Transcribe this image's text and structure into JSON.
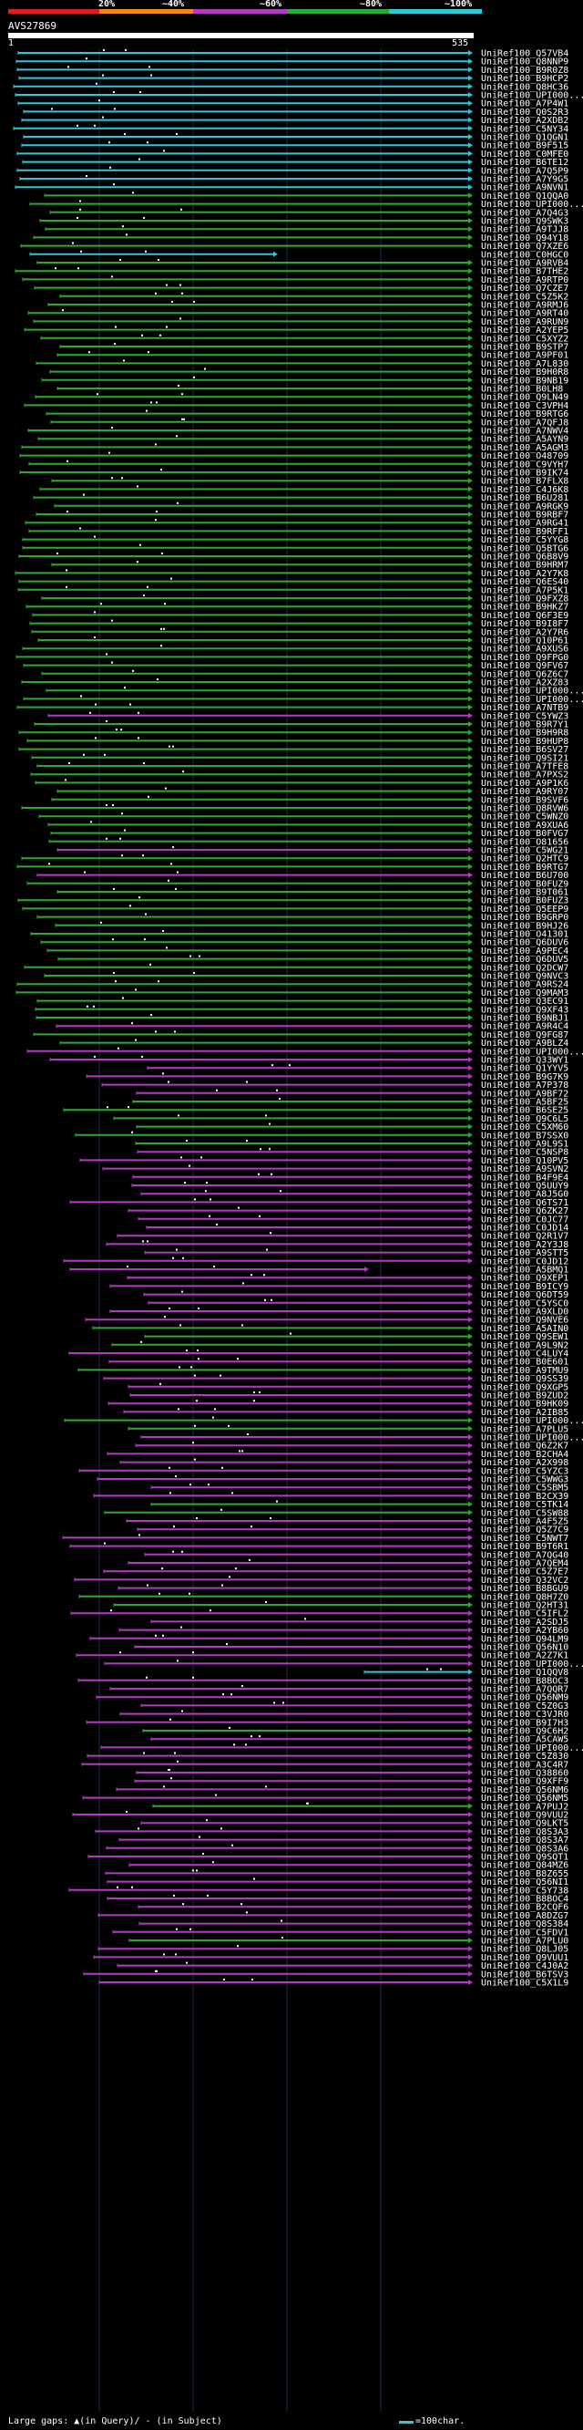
{
  "legend": {
    "labels": [
      "20%",
      "~40%",
      "~60%",
      "~80%",
      "~100%"
    ],
    "colors": [
      "#e01c1c",
      "#f08a14",
      "#b23ac2",
      "#2ea82e",
      "#33c6d8"
    ]
  },
  "query": {
    "id": "AVS27869",
    "start_tick": "1",
    "end_tick": "535"
  },
  "hits": [
    {
      "id": "UniRef100_Q57VB4",
      "color": "cyan"
    },
    {
      "id": "UniRef100_Q8NNP9",
      "color": "cyan"
    },
    {
      "id": "UniRef100_B9R0Z8",
      "color": "cyan"
    },
    {
      "id": "UniRef100_B9HCP2",
      "color": "cyan"
    },
    {
      "id": "UniRef100_Q8HC36",
      "color": "cyan"
    },
    {
      "id": "UniRef100_UPI000...",
      "color": "cyan"
    },
    {
      "id": "UniRef100_A7P4W1",
      "color": "cyan"
    },
    {
      "id": "UniRef100_Q0S2R3",
      "color": "cyan"
    },
    {
      "id": "UniRef100_A2XDB2",
      "color": "cyan"
    },
    {
      "id": "UniRef100_C5NY34",
      "color": "cyan"
    },
    {
      "id": "UniRef100_Q1QGN1",
      "color": "cyan"
    },
    {
      "id": "UniRef100_B9F515",
      "color": "cyan"
    },
    {
      "id": "UniRef100_C0MFE0",
      "color": "cyan"
    },
    {
      "id": "UniRef100_B6TE12",
      "color": "cyan"
    },
    {
      "id": "UniRef100_A7Q5P9",
      "color": "cyan"
    },
    {
      "id": "UniRef100_A7Y9G5",
      "color": "cyan"
    },
    {
      "id": "UniRef100_A9NVN1",
      "color": "cyan"
    },
    {
      "id": "UniRef100_Q1QQA0",
      "color": "green"
    },
    {
      "id": "UniRef100_UPI000...",
      "color": "green"
    },
    {
      "id": "UniRef100_A7Q4G3",
      "color": "green"
    },
    {
      "id": "UniRef100_Q9SWK3",
      "color": "green"
    },
    {
      "id": "UniRef100_A9TJJ8",
      "color": "green"
    },
    {
      "id": "UniRef100_Q94Y18",
      "color": "green"
    },
    {
      "id": "UniRef100_Q7XZE6",
      "color": "green"
    },
    {
      "id": "UniRef100_C0HGC0",
      "color": "cyan"
    },
    {
      "id": "UniRef100_A9RVB4",
      "color": "green"
    },
    {
      "id": "UniRef100_B7THE2",
      "color": "green"
    },
    {
      "id": "UniRef100_A9RTP0",
      "color": "green"
    },
    {
      "id": "UniRef100_Q7CZE7",
      "color": "green"
    },
    {
      "id": "UniRef100_C5Z5K2",
      "color": "green"
    },
    {
      "id": "UniRef100_A9RMJ6",
      "color": "green"
    },
    {
      "id": "UniRef100_A9RT40",
      "color": "green"
    },
    {
      "id": "UniRef100_A9RUN9",
      "color": "green"
    },
    {
      "id": "UniRef100_A2YEP5",
      "color": "green"
    },
    {
      "id": "UniRef100_C5XYZ2",
      "color": "green"
    },
    {
      "id": "UniRef100_B9STP7",
      "color": "green"
    },
    {
      "id": "UniRef100_A9PF01",
      "color": "green"
    },
    {
      "id": "UniRef100_A7L830",
      "color": "green"
    },
    {
      "id": "UniRef100_B9H0R8",
      "color": "green"
    },
    {
      "id": "UniRef100_B9NB19",
      "color": "green"
    },
    {
      "id": "UniRef100_B0LH8",
      "color": "green"
    },
    {
      "id": "UniRef100_Q9LN49",
      "color": "green"
    },
    {
      "id": "UniRef100_C3VPH4",
      "color": "green"
    },
    {
      "id": "UniRef100_B9RTG6",
      "color": "green"
    },
    {
      "id": "UniRef100_A7QFJ8",
      "color": "green"
    },
    {
      "id": "UniRef100_A7NWV4",
      "color": "green"
    },
    {
      "id": "UniRef100_A5AYN9",
      "color": "green"
    },
    {
      "id": "UniRef100_A5AGM3",
      "color": "green"
    },
    {
      "id": "UniRef100_O48709",
      "color": "green"
    },
    {
      "id": "UniRef100_C9VYH7",
      "color": "green"
    },
    {
      "id": "UniRef100_B9IK74",
      "color": "green"
    },
    {
      "id": "UniRef100_B7FLX8",
      "color": "green"
    },
    {
      "id": "UniRef100_C4J6K8",
      "color": "green"
    },
    {
      "id": "UniRef100_B6U281",
      "color": "green"
    },
    {
      "id": "UniRef100_A9RGK9",
      "color": "green"
    },
    {
      "id": "UniRef100_B9RBF7",
      "color": "green"
    },
    {
      "id": "UniRef100_A9RG41",
      "color": "green"
    },
    {
      "id": "UniRef100_B9RFF1",
      "color": "green"
    },
    {
      "id": "UniRef100_C5YYG8",
      "color": "green"
    },
    {
      "id": "UniRef100_Q5BTG6",
      "color": "green"
    },
    {
      "id": "UniRef100_Q6B8V9",
      "color": "green"
    },
    {
      "id": "UniRef100_B9HRM7",
      "color": "green"
    },
    {
      "id": "UniRef100_A2Y7K8",
      "color": "green"
    },
    {
      "id": "UniRef100_Q6ES40",
      "color": "green"
    },
    {
      "id": "UniRef100_A7P5K1",
      "color": "green"
    },
    {
      "id": "UniRef100_Q9FXZ8",
      "color": "green"
    },
    {
      "id": "UniRef100_B9HKZ7",
      "color": "green"
    },
    {
      "id": "UniRef100_Q6F3E9",
      "color": "green"
    },
    {
      "id": "UniRef100_B9I8F7",
      "color": "green"
    },
    {
      "id": "UniRef100_A2Y7R6",
      "color": "green"
    },
    {
      "id": "UniRef100_Q10P61",
      "color": "green"
    },
    {
      "id": "UniRef100_A9XUS6",
      "color": "green"
    },
    {
      "id": "UniRef100_Q9FPG0",
      "color": "green"
    },
    {
      "id": "UniRef100_Q9FV67",
      "color": "green"
    },
    {
      "id": "UniRef100_Q6Z6C7",
      "color": "green"
    },
    {
      "id": "UniRef100_A2XZ83",
      "color": "green"
    },
    {
      "id": "UniRef100_UPI000...",
      "color": "green"
    },
    {
      "id": "UniRef100_UPI000...",
      "color": "green"
    },
    {
      "id": "UniRef100_A7NTB9",
      "color": "green"
    },
    {
      "id": "UniRef100_C5YWZ3",
      "color": "magenta"
    },
    {
      "id": "UniRef100_B9R7Y1",
      "color": "green"
    },
    {
      "id": "UniRef100_B9H9R8",
      "color": "green"
    },
    {
      "id": "UniRef100_B9HUP8",
      "color": "green"
    },
    {
      "id": "UniRef100_B6SV27",
      "color": "green"
    },
    {
      "id": "UniRef100_Q9SI21",
      "color": "green"
    },
    {
      "id": "UniRef100_A7TFE8",
      "color": "green"
    },
    {
      "id": "UniRef100_A7PXS2",
      "color": "green"
    },
    {
      "id": "UniRef100_A9P1K6",
      "color": "green"
    },
    {
      "id": "UniRef100_A9RY07",
      "color": "green"
    },
    {
      "id": "UniRef100_B9SVF6",
      "color": "green"
    },
    {
      "id": "UniRef100_Q8RVW6",
      "color": "green"
    },
    {
      "id": "UniRef100_C5WNZ0",
      "color": "green"
    },
    {
      "id": "UniRef100_A9XUA6",
      "color": "green"
    },
    {
      "id": "UniRef100_B0FVG7",
      "color": "green"
    },
    {
      "id": "UniRef100_O81656",
      "color": "green"
    },
    {
      "id": "UniRef100_C5WG21",
      "color": "magenta"
    },
    {
      "id": "UniRef100_Q2HTC9",
      "color": "green"
    },
    {
      "id": "UniRef100_B9RTG7",
      "color": "green"
    },
    {
      "id": "UniRef100_B6U700",
      "color": "magenta"
    },
    {
      "id": "UniRef100_B0FUZ9",
      "color": "green"
    },
    {
      "id": "UniRef100_B9T061",
      "color": "green"
    },
    {
      "id": "UniRef100_B0FUZ3",
      "color": "green"
    },
    {
      "id": "UniRef100_Q5EEP9",
      "color": "green"
    },
    {
      "id": "UniRef100_B9GRP0",
      "color": "green"
    },
    {
      "id": "UniRef100_B9HJ26",
      "color": "green"
    },
    {
      "id": "UniRef100_O41301",
      "color": "green"
    },
    {
      "id": "UniRef100_Q6DUV6",
      "color": "green"
    },
    {
      "id": "UniRef100_A9PEC4",
      "color": "green"
    },
    {
      "id": "UniRef100_Q6DUV5",
      "color": "green"
    },
    {
      "id": "UniRef100_Q2DCW7",
      "color": "green"
    },
    {
      "id": "UniRef100_Q9NVC3",
      "color": "green"
    },
    {
      "id": "UniRef100_A9RS24",
      "color": "green"
    },
    {
      "id": "UniRef100_Q9MAM3",
      "color": "green"
    },
    {
      "id": "UniRef100_Q3EC91",
      "color": "green"
    },
    {
      "id": "UniRef100_Q9XF43",
      "color": "green"
    },
    {
      "id": "UniRef100_B9NBJ1",
      "color": "green"
    },
    {
      "id": "UniRef100_A9R4C4",
      "color": "magenta"
    },
    {
      "id": "UniRef100_Q9FG87",
      "color": "green"
    },
    {
      "id": "UniRef100_A9BLZ4",
      "color": "green"
    },
    {
      "id": "UniRef100_UPI000...",
      "color": "magenta"
    },
    {
      "id": "UniRef100_Q33WY1",
      "color": "magenta"
    },
    {
      "id": "UniRef100_Q1YYV5",
      "color": "magenta"
    },
    {
      "id": "UniRef100_B9G7K9",
      "color": "magenta"
    },
    {
      "id": "UniRef100_A7P378",
      "color": "magenta"
    },
    {
      "id": "UniRef100_A9BF72",
      "color": "magenta"
    },
    {
      "id": "UniRef100_A5BF25",
      "color": "green"
    },
    {
      "id": "UniRef100_B6SE25",
      "color": "green"
    },
    {
      "id": "UniRef100_Q9C6L5",
      "color": "green"
    },
    {
      "id": "UniRef100_C5XM60",
      "color": "green"
    },
    {
      "id": "UniRef100_B7SSX0",
      "color": "green"
    },
    {
      "id": "UniRef100_A9L9S1",
      "color": "green"
    },
    {
      "id": "UniRef100_C5NSP8",
      "color": "magenta"
    },
    {
      "id": "UniRef100_Q10PV5",
      "color": "magenta"
    },
    {
      "id": "UniRef100_A9SVN2",
      "color": "magenta"
    },
    {
      "id": "UniRef100_B4F9E4",
      "color": "magenta"
    },
    {
      "id": "UniRef100_Q5UUY9",
      "color": "magenta"
    },
    {
      "id": "UniRef100_A8J5G0",
      "color": "magenta"
    },
    {
      "id": "UniRef100_Q6TS71",
      "color": "magenta"
    },
    {
      "id": "UniRef100_Q6ZK27",
      "color": "magenta"
    },
    {
      "id": "UniRef100_C0JC77",
      "color": "magenta"
    },
    {
      "id": "UniRef100_C0JD14",
      "color": "magenta"
    },
    {
      "id": "UniRef100_Q2R1V7",
      "color": "magenta"
    },
    {
      "id": "UniRef100_A2Y3J8",
      "color": "magenta"
    },
    {
      "id": "UniRef100_A9STT5",
      "color": "magenta"
    },
    {
      "id": "UniRef100_C0JD12",
      "color": "magenta"
    },
    {
      "id": "UniRef100_A5BMQ1",
      "color": "magenta"
    },
    {
      "id": "UniRef100_Q9XEP1",
      "color": "magenta"
    },
    {
      "id": "UniRef100_B9ICY9",
      "color": "magenta"
    },
    {
      "id": "UniRef100_Q6DT59",
      "color": "magenta"
    },
    {
      "id": "UniRef100_C5YSC0",
      "color": "magenta"
    },
    {
      "id": "UniRef100_A9XLD0",
      "color": "magenta"
    },
    {
      "id": "UniRef100_Q9NVE6",
      "color": "magenta"
    },
    {
      "id": "UniRef100_A5AIN0",
      "color": "green"
    },
    {
      "id": "UniRef100_Q9SEW1",
      "color": "green"
    },
    {
      "id": "UniRef100_A9L9N2",
      "color": "green"
    },
    {
      "id": "UniRef100_C4LUY4",
      "color": "magenta"
    },
    {
      "id": "UniRef100_B0E601",
      "color": "magenta"
    },
    {
      "id": "UniRef100_A9TMU9",
      "color": "green"
    },
    {
      "id": "UniRef100_Q9SS39",
      "color": "magenta"
    },
    {
      "id": "UniRef100_Q9XGP5",
      "color": "magenta"
    },
    {
      "id": "UniRef100_B9ZUD2",
      "color": "magenta"
    },
    {
      "id": "UniRef100_B9HK09",
      "color": "magenta"
    },
    {
      "id": "UniRef100_A2IB85",
      "color": "magenta"
    },
    {
      "id": "UniRef100_UPI000...",
      "color": "green"
    },
    {
      "id": "UniRef100_A7PLU5",
      "color": "green"
    },
    {
      "id": "UniRef100_UPI000...",
      "color": "magenta"
    },
    {
      "id": "UniRef100_Q6Z2K7",
      "color": "magenta"
    },
    {
      "id": "UniRef100_B2CHA4",
      "color": "magenta"
    },
    {
      "id": "UniRef100_A2X998",
      "color": "magenta"
    },
    {
      "id": "UniRef100_C5YZC3",
      "color": "magenta"
    },
    {
      "id": "UniRef100_C5WWG3",
      "color": "magenta"
    },
    {
      "id": "UniRef100_C5SBM5",
      "color": "magenta"
    },
    {
      "id": "UniRef100_B2CX39",
      "color": "magenta"
    },
    {
      "id": "UniRef100_C5TK14",
      "color": "green"
    },
    {
      "id": "UniRef100_C5SW88",
      "color": "green"
    },
    {
      "id": "UniRef100_A4F5Z5",
      "color": "magenta"
    },
    {
      "id": "UniRef100_Q5Z7C9",
      "color": "magenta"
    },
    {
      "id": "UniRef100_C5NWT7",
      "color": "magenta"
    },
    {
      "id": "UniRef100_B9T6R1",
      "color": "magenta"
    },
    {
      "id": "UniRef100_A7QG40",
      "color": "magenta"
    },
    {
      "id": "UniRef100_A7QEM4",
      "color": "magenta"
    },
    {
      "id": "UniRef100_C5Z7E7",
      "color": "magenta"
    },
    {
      "id": "UniRef100_Q32VC2",
      "color": "magenta"
    },
    {
      "id": "UniRef100_B8BGU9",
      "color": "magenta"
    },
    {
      "id": "UniRef100_Q8H7Z0",
      "color": "green"
    },
    {
      "id": "UniRef100_Q2HT31",
      "color": "green"
    },
    {
      "id": "UniRef100_C5IFL2",
      "color": "magenta"
    },
    {
      "id": "UniRef100_A2SDJ5",
      "color": "magenta"
    },
    {
      "id": "UniRef100_A2YB60",
      "color": "magenta"
    },
    {
      "id": "UniRef100_Q94LM9",
      "color": "magenta"
    },
    {
      "id": "UniRef100_Q56N10",
      "color": "magenta"
    },
    {
      "id": "UniRef100_A2Z7K1",
      "color": "magenta"
    },
    {
      "id": "UniRef100_UPI000...",
      "color": "magenta"
    },
    {
      "id": "UniRef100_Q1QQV8",
      "color": "cyan"
    },
    {
      "id": "UniRef100_B8BOC3",
      "color": "magenta"
    },
    {
      "id": "UniRef100_A7QQR7",
      "color": "magenta"
    },
    {
      "id": "UniRef100_Q56NM9",
      "color": "magenta"
    },
    {
      "id": "UniRef100_C5Z0G3",
      "color": "magenta"
    },
    {
      "id": "UniRef100_C3VJR0",
      "color": "magenta"
    },
    {
      "id": "UniRef100_B9I7H3",
      "color": "magenta"
    },
    {
      "id": "UniRef100_Q9C6H2",
      "color": "green"
    },
    {
      "id": "UniRef100_A5CAW5",
      "color": "magenta"
    },
    {
      "id": "UniRef100_UPI000...",
      "color": "magenta"
    },
    {
      "id": "UniRef100_C5Z830",
      "color": "magenta"
    },
    {
      "id": "UniRef100_A3C4R7",
      "color": "magenta"
    },
    {
      "id": "UniRef100_Q38860",
      "color": "magenta"
    },
    {
      "id": "UniRef100_Q9XFF9",
      "color": "magenta"
    },
    {
      "id": "UniRef100_Q56NM6",
      "color": "magenta"
    },
    {
      "id": "UniRef100_Q56NM5",
      "color": "magenta"
    },
    {
      "id": "UniRef100_A7PUJ2",
      "color": "green"
    },
    {
      "id": "UniRef100_Q9VUU2",
      "color": "magenta"
    },
    {
      "id": "UniRef100_Q9LKT5",
      "color": "magenta"
    },
    {
      "id": "UniRef100_Q8S3A3",
      "color": "magenta"
    },
    {
      "id": "UniRef100_Q8S3A7",
      "color": "magenta"
    },
    {
      "id": "UniRef100_Q8S3A6",
      "color": "magenta"
    },
    {
      "id": "UniRef100_Q9SQT1",
      "color": "magenta"
    },
    {
      "id": "UniRef100_Q84MZ6",
      "color": "magenta"
    },
    {
      "id": "UniRef100_B8Z655",
      "color": "magenta"
    },
    {
      "id": "UniRef100_Q56NI1",
      "color": "magenta"
    },
    {
      "id": "UniRef100_C5Y738",
      "color": "magenta"
    },
    {
      "id": "UniRef100_B8BOC4",
      "color": "magenta"
    },
    {
      "id": "UniRef100_B2CQF6",
      "color": "magenta"
    },
    {
      "id": "UniRef100_A8DZG7",
      "color": "magenta"
    },
    {
      "id": "UniRef100_Q8S384",
      "color": "magenta"
    },
    {
      "id": "UniRef100_C5FDV1",
      "color": "magenta"
    },
    {
      "id": "UniRef100_A7PLU0",
      "color": "green"
    },
    {
      "id": "UniRef100_Q8LJ05",
      "color": "magenta"
    },
    {
      "id": "UniRef100_Q9VUU1",
      "color": "magenta"
    },
    {
      "id": "UniRef100_C4J0A2",
      "color": "magenta"
    },
    {
      "id": "UniRef100_B6TSV3",
      "color": "magenta"
    },
    {
      "id": "UniRef100_C5X1L9",
      "color": "magenta"
    }
  ],
  "footer": {
    "gaps_text": "Large gaps: ▲(in Query)/ - (in Subject)",
    "scale_text": "=100char."
  }
}
